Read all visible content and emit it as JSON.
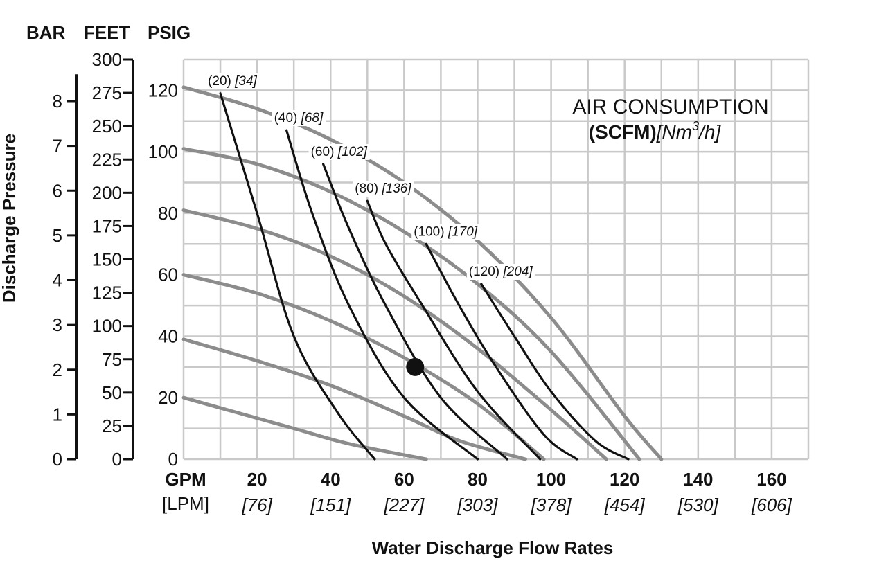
{
  "units_header": {
    "bar": "BAR",
    "feet": "FEET",
    "psig": "PSIG"
  },
  "y_title": "Discharge Pressure",
  "x_title": "Water Discharge Flow Rates",
  "air_legend": {
    "title": "AIR CONSUMPTION",
    "unit_bold": "(SCFM)",
    "unit_italic_pre": "[Nm",
    "unit_sup": "3",
    "unit_italic_post": "/h]"
  },
  "x_unit_gpm": "GPM",
  "x_unit_lpm": "[LPM]",
  "chart_data": {
    "type": "line",
    "title": "",
    "xlabel": "Water Discharge Flow Rates",
    "ylabel": "Discharge Pressure",
    "xlim": [
      0,
      170
    ],
    "ylim": [
      0,
      130
    ],
    "grid": true,
    "x_ticks_gpm": [
      "20",
      "40",
      "60",
      "80",
      "100",
      "120",
      "140",
      "160"
    ],
    "x_ticks_lpm": [
      "[76]",
      "[151]",
      "[227]",
      "[303]",
      "[378]",
      "[454]",
      "[530]",
      "[606]"
    ],
    "y_ticks_psig": [
      "0",
      "20",
      "40",
      "60",
      "80",
      "100",
      "120"
    ],
    "y_ticks_feet": [
      "0",
      "25",
      "50",
      "75",
      "100",
      "125",
      "150",
      "175",
      "200",
      "225",
      "250",
      "275",
      "300"
    ],
    "y_ticks_bar": [
      "0",
      "1",
      "2",
      "3",
      "4",
      "5",
      "6",
      "7",
      "8"
    ],
    "pressure_curves": [
      {
        "points": [
          [
            0,
            20
          ],
          [
            15,
            15
          ],
          [
            30,
            10
          ],
          [
            45,
            5
          ],
          [
            66,
            0
          ]
        ]
      },
      {
        "points": [
          [
            0,
            39
          ],
          [
            20,
            32
          ],
          [
            40,
            24
          ],
          [
            60,
            14
          ],
          [
            75,
            6
          ],
          [
            93,
            0
          ]
        ]
      },
      {
        "points": [
          [
            0,
            60
          ],
          [
            20,
            54
          ],
          [
            40,
            45
          ],
          [
            60,
            33
          ],
          [
            80,
            18
          ],
          [
            98,
            0
          ]
        ]
      },
      {
        "points": [
          [
            0,
            81
          ],
          [
            20,
            75
          ],
          [
            40,
            66
          ],
          [
            60,
            53
          ],
          [
            80,
            36
          ],
          [
            100,
            16
          ],
          [
            115,
            0
          ]
        ]
      },
      {
        "points": [
          [
            0,
            101
          ],
          [
            20,
            96
          ],
          [
            40,
            87
          ],
          [
            60,
            74
          ],
          [
            80,
            57
          ],
          [
            100,
            35
          ],
          [
            124,
            0
          ]
        ]
      },
      {
        "points": [
          [
            0,
            121
          ],
          [
            20,
            114
          ],
          [
            40,
            104
          ],
          [
            60,
            90
          ],
          [
            80,
            71
          ],
          [
            100,
            46
          ],
          [
            120,
            14
          ],
          [
            130,
            0
          ]
        ]
      }
    ],
    "air_curves": [
      {
        "label": "(20)",
        "label_it": "[34]",
        "points": [
          [
            10,
            119
          ],
          [
            20,
            80
          ],
          [
            30,
            40
          ],
          [
            42,
            15
          ],
          [
            52,
            0
          ]
        ]
      },
      {
        "label": "(40)",
        "label_it": "[68]",
        "points": [
          [
            28,
            107
          ],
          [
            35,
            80
          ],
          [
            45,
            50
          ],
          [
            60,
            20
          ],
          [
            80,
            0
          ]
        ]
      },
      {
        "label": "(60)",
        "label_it": "[102]",
        "points": [
          [
            38,
            96
          ],
          [
            45,
            75
          ],
          [
            55,
            50
          ],
          [
            70,
            20
          ],
          [
            88,
            0
          ]
        ]
      },
      {
        "label": "(80)",
        "label_it": "[136]",
        "points": [
          [
            50,
            84
          ],
          [
            55,
            70
          ],
          [
            65,
            50
          ],
          [
            80,
            22
          ],
          [
            97,
            0
          ]
        ]
      },
      {
        "label": "(100)",
        "label_it": "[170]",
        "points": [
          [
            66,
            70
          ],
          [
            75,
            50
          ],
          [
            85,
            30
          ],
          [
            98,
            8
          ],
          [
            107,
            0
          ]
        ]
      },
      {
        "label": "(120)",
        "label_it": "[204]",
        "points": [
          [
            81,
            57
          ],
          [
            90,
            40
          ],
          [
            100,
            22
          ],
          [
            112,
            6
          ],
          [
            121,
            0
          ]
        ]
      }
    ],
    "operating_point": [
      63,
      30
    ]
  }
}
